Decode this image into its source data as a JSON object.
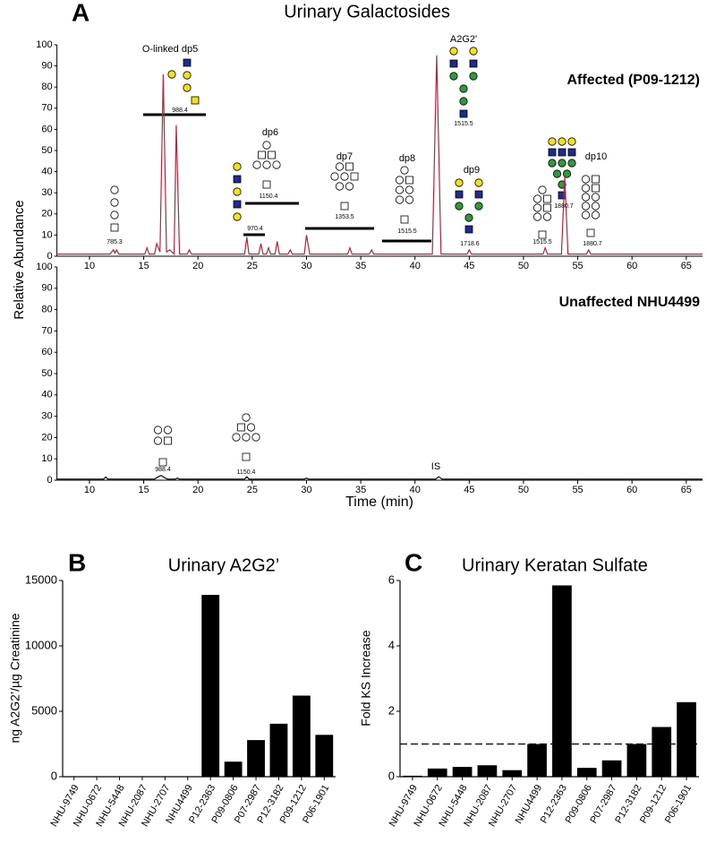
{
  "chart_data": [
    {
      "type": "line",
      "panel": "A",
      "title": "Urinary Galactosides",
      "y_label": "Relative Abundance",
      "xlim": [
        7,
        66.5
      ],
      "xticks": [
        10,
        15,
        20,
        25,
        30,
        35,
        40,
        45,
        50,
        55,
        60,
        65
      ],
      "ylim": [
        0,
        100
      ],
      "yticks": [
        0,
        10,
        20,
        30,
        40,
        50,
        60,
        70,
        80,
        90,
        100
      ],
      "x": [
        7,
        11.9,
        12.2,
        12.35,
        12.5,
        12.7,
        15.1,
        15.3,
        15.5,
        16.0,
        16.2,
        16.5,
        16.8,
        17.1,
        17.4,
        17.8,
        18.0,
        18.3,
        19.0,
        19.2,
        19.4,
        24.3,
        24.5,
        24.7,
        25.6,
        25.8,
        26.0,
        26.3,
        26.5,
        26.7,
        27.1,
        27.3,
        27.5,
        28.3,
        28.5,
        28.7,
        29.8,
        30.0,
        30.3,
        33.8,
        34.0,
        34.2,
        35.8,
        36.0,
        36.2,
        41.6,
        42.0,
        42.4,
        44.8,
        45.0,
        45.2,
        51.8,
        52.0,
        52.2,
        53.5,
        53.8,
        54.1,
        55.8,
        56.0,
        56.2,
        66.5
      ],
      "series": [
        {
          "name": "Affected (P09-1212)",
          "color": "#b5253a",
          "values": [
            1,
            1,
            3,
            1.5,
            3,
            1,
            1,
            4,
            1,
            1,
            6,
            2,
            86,
            2,
            3,
            1,
            62,
            1,
            1,
            3,
            1,
            1,
            9,
            1,
            1,
            6,
            1,
            1,
            4,
            1,
            1,
            7,
            1,
            1,
            3,
            1,
            1,
            10,
            1,
            1,
            4,
            1,
            1,
            3,
            1,
            1,
            95,
            1,
            1,
            3,
            1,
            1,
            4,
            1,
            1,
            38,
            1,
            1,
            3,
            1,
            1
          ]
        }
      ],
      "annotations": [
        "O-linked dp5",
        "988.4",
        "A2G2'",
        "1515.5",
        "dp6",
        "1150.4",
        "970.4",
        "dp7",
        "1353.5",
        "dp8",
        "1515.5",
        "dp9",
        "1718.6",
        "785.3",
        "1515.5",
        "1880.7",
        "dp10",
        "1880.7"
      ]
    },
    {
      "type": "line",
      "x_label": "Time (min)",
      "xlim": [
        7,
        66.5
      ],
      "xticks": [
        10,
        15,
        20,
        25,
        30,
        35,
        40,
        45,
        50,
        55,
        60,
        65
      ],
      "ylim": [
        0,
        100
      ],
      "yticks": [
        0,
        10,
        20,
        30,
        40,
        50,
        60,
        70,
        80,
        90,
        100
      ],
      "x": [
        7,
        11.3,
        11.5,
        11.7,
        16.0,
        16.3,
        16.6,
        16.9,
        17.2,
        17.9,
        18.1,
        18.3,
        24.3,
        24.5,
        24.7,
        29.8,
        30.0,
        30.2,
        41.9,
        42.2,
        42.5,
        66.5
      ],
      "series": [
        {
          "name": "Unaffected NHU4499",
          "color": "#000000",
          "values": [
            0.5,
            0.5,
            1.5,
            0.5,
            0.5,
            1.5,
            2.2,
            1.2,
            0.5,
            0.5,
            1,
            0.5,
            0.5,
            1.6,
            0.5,
            0.5,
            1,
            0.5,
            0.5,
            1.6,
            0.5,
            0.5
          ]
        }
      ],
      "annotations": [
        "988.4",
        "1150.4",
        "IS"
      ]
    },
    {
      "type": "bar",
      "panel": "B",
      "title": "Urinary A2G2’",
      "y_label": "ng A2G2’/µg Creatinine",
      "categories": [
        "NHU-9749",
        "NHU-0672",
        "NHU-5448",
        "NHU-2087",
        "NHU-2707",
        "NHU4499",
        "P12-2363",
        "P09-0806",
        "P07-2987",
        "P12-3182",
        "P09-1212",
        "P06-1901"
      ],
      "values": [
        0,
        0,
        0,
        0,
        0,
        0,
        13900,
        1150,
        2800,
        4050,
        6200,
        3200
      ],
      "color": "#000000",
      "ylim": [
        0,
        15000
      ],
      "yticks": [
        0,
        5000,
        10000,
        15000
      ]
    },
    {
      "type": "bar",
      "panel": "C",
      "title": "Urinary Keratan Sulfate",
      "y_label": "Fold KS Increase",
      "categories": [
        "NHU-9749",
        "NHU-0672",
        "NHU-5448",
        "NHU-2087",
        "NHU-2707",
        "NHU4499",
        "P12-2363",
        "P09-0806",
        "P07-2987",
        "P12-3182",
        "P09-1212",
        "P06-1901"
      ],
      "values": [
        0.03,
        0.25,
        0.3,
        0.35,
        0.2,
        1.0,
        5.85,
        0.27,
        0.5,
        1.0,
        1.52,
        2.28
      ],
      "color": "#000000",
      "ylim": [
        0,
        6
      ],
      "yticks": [
        0,
        2,
        4,
        6
      ],
      "hline": 1
    }
  ]
}
